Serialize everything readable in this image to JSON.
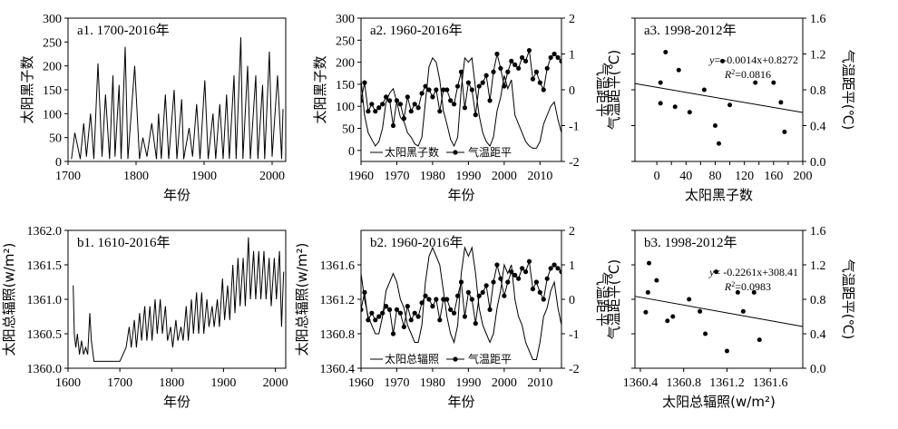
{
  "chart_data": [
    {
      "id": "a1",
      "type": "line",
      "title": "a1. 1700-2016年",
      "xlabel": "年份",
      "ylabel": "太阳黑子数",
      "xlim": [
        1700,
        2020
      ],
      "ylim": [
        0,
        300
      ],
      "xticks": [
        "1700",
        "1800",
        "1900",
        "2000"
      ],
      "yticks": [
        "0",
        "50",
        "100",
        "150",
        "200",
        "250",
        "300"
      ],
      "series": [
        {
          "x": [
            1705,
            1710,
            1718,
            1723,
            1727,
            1733,
            1738,
            1744,
            1750,
            1755,
            1761,
            1766,
            1769,
            1775,
            1778,
            1784,
            1788,
            1798,
            1805,
            1810,
            1816,
            1823,
            1830,
            1833,
            1837,
            1843,
            1848,
            1856,
            1860,
            1867,
            1870,
            1878,
            1883,
            1889,
            1894,
            1901,
            1906,
            1913,
            1917,
            1923,
            1928,
            1933,
            1937,
            1944,
            1947,
            1954,
            1957,
            1964,
            1968,
            1976,
            1979,
            1986,
            1989,
            1996,
            2000,
            2008,
            2014,
            2016
          ],
          "y": [
            5,
            60,
            5,
            80,
            10,
            100,
            5,
            205,
            10,
            140,
            5,
            180,
            10,
            160,
            5,
            240,
            5,
            200,
            5,
            50,
            10,
            80,
            5,
            100,
            5,
            140,
            5,
            150,
            5,
            130,
            5,
            70,
            10,
            120,
            5,
            170,
            5,
            100,
            5,
            120,
            5,
            140,
            5,
            180,
            5,
            260,
            5,
            200,
            5,
            180,
            5,
            160,
            5,
            230,
            10,
            180,
            5,
            110
          ]
        }
      ]
    },
    {
      "id": "a2",
      "type": "line",
      "title": "a2. 1960-2016年",
      "xlabel": "年份",
      "ylabel": "太阳黑子数",
      "y2label": "气温距平",
      "xlim": [
        1960,
        2016
      ],
      "ylim": [
        -25,
        300
      ],
      "y2lim": [
        -2,
        2
      ],
      "xticks": [
        "1960",
        "1970",
        "1980",
        "1990",
        "2000",
        "2010"
      ],
      "yticks": [
        "0",
        "50",
        "100",
        "150",
        "200",
        "250",
        "300"
      ],
      "y2ticks": [
        "-2",
        "-1",
        "0",
        "1",
        "2"
      ],
      "legend": [
        "太阳黑子数",
        "气温距平"
      ],
      "legend_position": "bottom",
      "series": [
        {
          "name": "太阳黑子数",
          "x": [
            1960,
            1961,
            1962,
            1963,
            1964,
            1965,
            1966,
            1967,
            1968,
            1969,
            1970,
            1971,
            1972,
            1973,
            1974,
            1975,
            1976,
            1977,
            1978,
            1979,
            1980,
            1981,
            1982,
            1983,
            1984,
            1985,
            1986,
            1987,
            1988,
            1989,
            1990,
            1991,
            1992,
            1993,
            1994,
            1995,
            1996,
            1997,
            1998,
            1999,
            2000,
            2001,
            2002,
            2003,
            2004,
            2005,
            2006,
            2007,
            2008,
            2009,
            2010,
            2011,
            2012,
            2013,
            2014,
            2015,
            2016
          ],
          "y": [
            160,
            80,
            40,
            25,
            10,
            20,
            50,
            110,
            130,
            140,
            110,
            75,
            65,
            40,
            30,
            15,
            10,
            30,
            110,
            190,
            210,
            200,
            160,
            90,
            60,
            25,
            10,
            30,
            140,
            210,
            200,
            210,
            140,
            80,
            40,
            20,
            10,
            30,
            90,
            120,
            170,
            140,
            160,
            80,
            60,
            40,
            20,
            10,
            5,
            5,
            20,
            60,
            80,
            100,
            110,
            70,
            40
          ]
        },
        {
          "name": "气温距平",
          "x": [
            1960,
            1961,
            1962,
            1963,
            1964,
            1965,
            1966,
            1967,
            1968,
            1969,
            1970,
            1971,
            1972,
            1973,
            1974,
            1975,
            1976,
            1977,
            1978,
            1979,
            1980,
            1981,
            1982,
            1983,
            1984,
            1985,
            1986,
            1987,
            1988,
            1989,
            1990,
            1991,
            1992,
            1993,
            1994,
            1995,
            1996,
            1997,
            1998,
            1999,
            2000,
            2001,
            2002,
            2003,
            2004,
            2005,
            2006,
            2007,
            2008,
            2009,
            2010,
            2011,
            2012,
            2013,
            2014,
            2015,
            2016
          ],
          "y": [
            -0.3,
            0.2,
            -0.6,
            -0.4,
            -0.6,
            -0.5,
            -0.4,
            -0.2,
            -0.3,
            -1.0,
            -0.3,
            -0.4,
            -0.8,
            -0.2,
            -0.6,
            -0.4,
            -0.5,
            -0.1,
            0.1,
            0.0,
            -0.2,
            0.0,
            -0.6,
            0.0,
            0.0,
            -0.3,
            -0.4,
            0.1,
            0.5,
            -0.5,
            0.2,
            0.0,
            -0.7,
            0.1,
            0.2,
            0.4,
            -0.3,
            0.5,
            1.0,
            0.6,
            0.1,
            0.5,
            0.8,
            0.7,
            0.6,
            0.9,
            0.8,
            1.1,
            0.3,
            0.5,
            0.2,
            0.0,
            0.6,
            0.9,
            1.0,
            0.9,
            0.8
          ]
        }
      ]
    },
    {
      "id": "a3",
      "type": "scatter",
      "title": "a3. 1998-2012年",
      "xlabel": "太阳黑子数",
      "ylabel": "气温距平(℃)",
      "y2label": "气温距平(℃)",
      "xlim": [
        -30,
        200
      ],
      "ylim": [
        0,
        1.6
      ],
      "xticks": [
        "0",
        "20",
        "40",
        "60",
        "80",
        "100",
        "120",
        "140",
        "160",
        "180",
        "200"
      ],
      "yticks": [
        "0.0",
        "0.4",
        "0.8",
        "1.2",
        "1.6"
      ],
      "equation_prefix": "y",
      "equation_body": "= -0.0014x+0.8272",
      "r2_prefix": "R",
      "r2_body": "=0.0816",
      "points": [
        [
          5,
          0.88
        ],
        [
          5,
          0.65
        ],
        [
          12,
          1.22
        ],
        [
          25,
          0.61
        ],
        [
          30,
          1.02
        ],
        [
          45,
          0.55
        ],
        [
          65,
          0.8
        ],
        [
          80,
          0.4
        ],
        [
          85,
          0.2
        ],
        [
          90,
          1.12
        ],
        [
          100,
          0.63
        ],
        [
          135,
          0.88
        ],
        [
          160,
          0.88
        ],
        [
          170,
          0.66
        ],
        [
          175,
          0.33
        ]
      ],
      "fit": {
        "slope": -0.0014,
        "intercept": 0.8272
      }
    },
    {
      "id": "b1",
      "type": "line",
      "title": "b1. 1610-2016年",
      "xlabel": "年份",
      "ylabel": "太阳总辐照(w/m²)",
      "xlim": [
        1600,
        2020
      ],
      "ylim": [
        1360.0,
        1362.0
      ],
      "xticks": [
        "1600",
        "1700",
        "1800",
        "1900",
        "2000"
      ],
      "yticks": [
        "1360.0",
        "1360.5",
        "1361.0",
        "1361.5",
        "1362.0"
      ],
      "series": [
        {
          "x": [
            1610,
            1612,
            1615,
            1618,
            1622,
            1626,
            1630,
            1634,
            1638,
            1642,
            1645,
            1650,
            1660,
            1680,
            1700,
            1712,
            1718,
            1722,
            1728,
            1732,
            1738,
            1742,
            1748,
            1752,
            1758,
            1762,
            1768,
            1772,
            1778,
            1782,
            1788,
            1792,
            1798,
            1802,
            1808,
            1812,
            1818,
            1822,
            1828,
            1832,
            1838,
            1842,
            1848,
            1852,
            1858,
            1862,
            1868,
            1872,
            1878,
            1882,
            1888,
            1892,
            1898,
            1902,
            1908,
            1912,
            1918,
            1922,
            1928,
            1932,
            1938,
            1942,
            1948,
            1952,
            1958,
            1962,
            1968,
            1972,
            1978,
            1982,
            1988,
            1992,
            1998,
            2002,
            2008,
            2012,
            2016
          ],
          "y": [
            1361.2,
            1360.5,
            1360.3,
            1360.5,
            1360.2,
            1360.4,
            1360.2,
            1360.3,
            1360.2,
            1360.8,
            1360.4,
            1360.1,
            1360.1,
            1360.1,
            1360.1,
            1360.3,
            1360.6,
            1360.3,
            1360.7,
            1360.3,
            1360.8,
            1360.4,
            1360.9,
            1360.4,
            1360.9,
            1360.4,
            1361.0,
            1360.5,
            1361.0,
            1360.5,
            1360.9,
            1360.4,
            1360.6,
            1360.3,
            1360.7,
            1360.4,
            1360.6,
            1360.4,
            1360.9,
            1360.4,
            1361.0,
            1360.5,
            1361.1,
            1360.5,
            1361.1,
            1360.5,
            1361.0,
            1360.6,
            1360.9,
            1360.6,
            1361.0,
            1360.6,
            1361.3,
            1360.7,
            1361.2,
            1360.7,
            1361.5,
            1360.8,
            1361.6,
            1360.9,
            1361.6,
            1360.9,
            1361.9,
            1361.0,
            1361.7,
            1361.0,
            1361.7,
            1361.0,
            1361.7,
            1361.0,
            1361.6,
            1360.9,
            1361.6,
            1361.0,
            1361.7,
            1360.6,
            1361.4
          ]
        }
      ]
    },
    {
      "id": "b2",
      "type": "line",
      "title": "b2. 1960-2016年",
      "xlabel": "年份",
      "ylabel": "太阳总辐照(w/m²)",
      "y2label": "气温距平",
      "xlim": [
        1960,
        2016
      ],
      "ylim": [
        1360.4,
        1362.0
      ],
      "y2lim": [
        -2,
        2
      ],
      "xticks": [
        "1960",
        "1970",
        "1980",
        "1990",
        "2000",
        "2010"
      ],
      "yticks": [
        "1360.4",
        "1360.8",
        "1361.2",
        "1361.6"
      ],
      "y2ticks": [
        "-2",
        "-1",
        "0",
        "1",
        "2"
      ],
      "legend": [
        "太阳总辐照",
        "气温距平"
      ],
      "legend_position": "bottom",
      "series": [
        {
          "name": "太阳总辐照",
          "x": [
            1960,
            1961,
            1962,
            1963,
            1964,
            1965,
            1966,
            1967,
            1968,
            1969,
            1970,
            1971,
            1972,
            1973,
            1974,
            1975,
            1976,
            1977,
            1978,
            1979,
            1980,
            1981,
            1982,
            1983,
            1984,
            1985,
            1986,
            1987,
            1988,
            1989,
            1990,
            1991,
            1992,
            1993,
            1994,
            1995,
            1996,
            1997,
            1998,
            1999,
            2000,
            2001,
            2002,
            2003,
            2004,
            2005,
            2006,
            2007,
            2008,
            2009,
            2010,
            2011,
            2012,
            2013,
            2014,
            2015,
            2016
          ],
          "y": [
            1361.5,
            1361.2,
            1361.0,
            1360.9,
            1360.8,
            1360.8,
            1361.0,
            1361.3,
            1361.4,
            1361.5,
            1361.4,
            1361.2,
            1361.1,
            1360.9,
            1360.8,
            1360.7,
            1360.7,
            1360.9,
            1361.4,
            1361.7,
            1361.8,
            1361.7,
            1361.6,
            1361.3,
            1361.0,
            1360.8,
            1360.7,
            1360.9,
            1361.5,
            1361.8,
            1361.7,
            1361.8,
            1361.5,
            1361.1,
            1360.9,
            1360.8,
            1360.7,
            1360.8,
            1361.1,
            1361.3,
            1361.6,
            1361.5,
            1361.6,
            1361.2,
            1361.0,
            1360.9,
            1360.7,
            1360.6,
            1360.5,
            1360.5,
            1360.7,
            1361.0,
            1361.1,
            1361.3,
            1361.4,
            1361.1,
            1360.9
          ]
        },
        {
          "name": "气温距平",
          "x": [
            1960,
            1961,
            1962,
            1963,
            1964,
            1965,
            1966,
            1967,
            1968,
            1969,
            1970,
            1971,
            1972,
            1973,
            1974,
            1975,
            1976,
            1977,
            1978,
            1979,
            1980,
            1981,
            1982,
            1983,
            1984,
            1985,
            1986,
            1987,
            1988,
            1989,
            1990,
            1991,
            1992,
            1993,
            1994,
            1995,
            1996,
            1997,
            1998,
            1999,
            2000,
            2001,
            2002,
            2003,
            2004,
            2005,
            2006,
            2007,
            2008,
            2009,
            2010,
            2011,
            2012,
            2013,
            2014,
            2015,
            2016
          ],
          "y": [
            -0.3,
            0.2,
            -0.6,
            -0.4,
            -0.6,
            -0.5,
            -0.4,
            -0.2,
            -0.3,
            -1.0,
            -0.3,
            -0.4,
            -0.8,
            -0.2,
            -0.6,
            -0.4,
            -0.5,
            -0.1,
            0.1,
            0.0,
            -0.2,
            0.0,
            -0.6,
            0.0,
            0.0,
            -0.3,
            -0.4,
            0.1,
            0.5,
            -0.5,
            0.2,
            0.0,
            -0.7,
            0.1,
            0.2,
            0.4,
            -0.3,
            0.5,
            1.0,
            0.6,
            0.1,
            0.5,
            0.8,
            0.7,
            0.6,
            0.9,
            0.8,
            1.1,
            0.3,
            0.5,
            0.2,
            0.0,
            0.6,
            0.9,
            1.0,
            0.9,
            0.8
          ]
        }
      ]
    },
    {
      "id": "b3",
      "type": "scatter",
      "title": "b3. 1998-2012年",
      "xlabel": "太阳总辐照(w/m²)",
      "ylabel": "气温距平(℃)",
      "y2label": "气温距平(℃)",
      "xlim": [
        1360.35,
        1361.9
      ],
      "ylim": [
        0,
        1.6
      ],
      "xticks": [
        "1360.4",
        "1360.8",
        "1361.2",
        "1361.6"
      ],
      "yticks": [
        "0.0",
        "0.4",
        "0.8",
        "1.2",
        "1.6"
      ],
      "equation_prefix": "y",
      "equation_body": "= -0.2261x+308.41",
      "r2_prefix": "R",
      "r2_body": "=0.0983",
      "points": [
        [
          1360.45,
          0.65
        ],
        [
          1360.48,
          1.22
        ],
        [
          1360.47,
          0.88
        ],
        [
          1360.55,
          1.02
        ],
        [
          1360.65,
          0.55
        ],
        [
          1360.7,
          0.6
        ],
        [
          1360.85,
          0.8
        ],
        [
          1360.95,
          0.66
        ],
        [
          1361.0,
          0.4
        ],
        [
          1361.1,
          1.12
        ],
        [
          1361.2,
          0.2
        ],
        [
          1361.3,
          0.88
        ],
        [
          1361.35,
          0.66
        ],
        [
          1361.45,
          0.88
        ],
        [
          1361.5,
          0.33
        ]
      ],
      "fit": {
        "slope": -0.2261,
        "intercept": 308.41
      }
    }
  ]
}
